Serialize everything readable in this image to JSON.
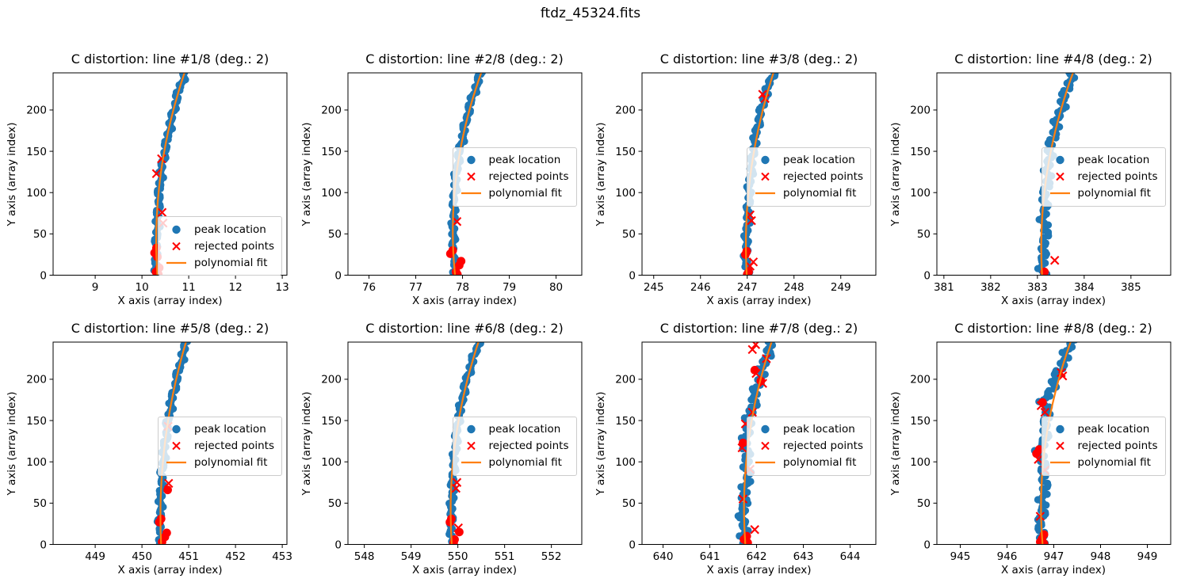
{
  "figure": {
    "suptitle": "ftdz_45324.fits",
    "background": "#ffffff"
  },
  "colors": {
    "peak": "#1f77b4",
    "rejected": "#ff0000",
    "fit": "#ff7f0e",
    "frame": "#000000"
  },
  "legend": {
    "items": [
      {
        "label": "peak location",
        "marker": "dot",
        "color": "#1f77b4"
      },
      {
        "label": "rejected points",
        "marker": "x",
        "color": "#ff0000"
      },
      {
        "label": "polynomial fit",
        "marker": "line",
        "color": "#ff7f0e"
      }
    ]
  },
  "axis": {
    "xlabel": "X axis (array index)",
    "ylabel": "Y axis (array index)",
    "y_ticks": [
      0,
      50,
      100,
      150,
      200
    ],
    "ylim": [
      0,
      245
    ],
    "grid": false
  },
  "chart_data": [
    {
      "type": "scatter",
      "title": "C distortion: line #1/8 (deg.: 2)",
      "xlim": [
        8.1,
        13.1
      ],
      "x_ticks": [
        9,
        10,
        11,
        12,
        13
      ],
      "legend_loc": "lower right",
      "wiggle": 0.032,
      "seed": 1,
      "series": {
        "peak_trace": [
          [
            0,
            10.31
          ],
          [
            25,
            10.3
          ],
          [
            50,
            10.32
          ],
          [
            75,
            10.34
          ],
          [
            100,
            10.37
          ],
          [
            125,
            10.41
          ],
          [
            150,
            10.49
          ],
          [
            175,
            10.58
          ],
          [
            200,
            10.68
          ],
          [
            222,
            10.78
          ],
          [
            245,
            10.92
          ]
        ],
        "fit": [
          [
            0,
            10.33
          ],
          [
            122,
            10.4
          ],
          [
            245,
            10.91
          ]
        ],
        "rejected": [
          [
            10.42,
            141,
            "x"
          ],
          [
            10.31,
            123,
            "x"
          ],
          [
            10.43,
            76,
            "x"
          ],
          [
            10.45,
            63,
            "x"
          ],
          [
            10.31,
            33,
            "dot"
          ],
          [
            10.27,
            27,
            "dot"
          ],
          [
            10.33,
            22,
            "dot"
          ],
          [
            10.37,
            9,
            "dot"
          ],
          [
            10.3,
            4,
            "dot"
          ],
          [
            10.35,
            1,
            "dot"
          ]
        ]
      }
    },
    {
      "type": "scatter",
      "title": "C distortion: line #2/8 (deg.: 2)",
      "xlim": [
        75.55,
        80.55
      ],
      "x_ticks": [
        76,
        77,
        78,
        79,
        80
      ],
      "legend_loc": "center right",
      "wiggle": 0.032,
      "seed": 2,
      "series": {
        "peak_trace": [
          [
            0,
            77.85
          ],
          [
            25,
            77.8
          ],
          [
            50,
            77.8
          ],
          [
            75,
            77.81
          ],
          [
            100,
            77.83
          ],
          [
            125,
            77.87
          ],
          [
            150,
            77.94
          ],
          [
            175,
            78.03
          ],
          [
            200,
            78.13
          ],
          [
            222,
            78.25
          ],
          [
            245,
            78.4
          ]
        ],
        "fit": [
          [
            0,
            77.84
          ],
          [
            122,
            77.87
          ],
          [
            245,
            78.4
          ]
        ],
        "rejected": [
          [
            77.88,
            65,
            "x"
          ],
          [
            77.79,
            30,
            "dot"
          ],
          [
            77.74,
            26,
            "dot"
          ],
          [
            77.97,
            17,
            "dot"
          ],
          [
            77.93,
            12,
            "dot"
          ],
          [
            77.86,
            4,
            "dot"
          ],
          [
            77.89,
            1,
            "dot"
          ]
        ]
      }
    },
    {
      "type": "scatter",
      "title": "C distortion: line #3/8 (deg.: 2)",
      "xlim": [
        244.75,
        249.75
      ],
      "x_ticks": [
        245,
        246,
        247,
        248,
        249
      ],
      "legend_loc": "center right",
      "wiggle": 0.034,
      "seed": 3,
      "series": {
        "peak_trace": [
          [
            0,
            247.0
          ],
          [
            25,
            246.97
          ],
          [
            50,
            246.99
          ],
          [
            75,
            247.02
          ],
          [
            100,
            247.04
          ],
          [
            125,
            247.08
          ],
          [
            150,
            247.13
          ],
          [
            175,
            247.2
          ],
          [
            200,
            247.3
          ],
          [
            222,
            247.41
          ],
          [
            245,
            247.56
          ]
        ],
        "fit": [
          [
            0,
            246.99
          ],
          [
            122,
            247.07
          ],
          [
            245,
            247.56
          ]
        ],
        "rejected": [
          [
            247.33,
            219,
            "x"
          ],
          [
            247.38,
            214,
            "x"
          ],
          [
            247.06,
            73,
            "x"
          ],
          [
            247.09,
            66,
            "x"
          ],
          [
            246.99,
            29,
            "dot"
          ],
          [
            246.96,
            25,
            "dot"
          ],
          [
            247.13,
            16,
            "x"
          ],
          [
            247.06,
            11,
            "x"
          ],
          [
            247.03,
            4,
            "dot"
          ],
          [
            247.0,
            1,
            "dot"
          ]
        ]
      }
    },
    {
      "type": "scatter",
      "title": "C distortion: line #4/8 (deg.: 2)",
      "xlim": [
        380.85,
        385.85
      ],
      "x_ticks": [
        381,
        382,
        383,
        384,
        385
      ],
      "legend_loc": "center right",
      "wiggle": 0.055,
      "seed": 4,
      "series": {
        "peak_trace": [
          [
            0,
            383.13
          ],
          [
            20,
            383.1
          ],
          [
            45,
            383.18
          ],
          [
            70,
            383.14
          ],
          [
            95,
            383.16
          ],
          [
            115,
            383.22
          ],
          [
            140,
            383.24
          ],
          [
            160,
            383.3
          ],
          [
            185,
            383.42
          ],
          [
            210,
            383.55
          ],
          [
            230,
            383.65
          ],
          [
            245,
            383.76
          ]
        ],
        "fit": [
          [
            0,
            383.1
          ],
          [
            122,
            383.2
          ],
          [
            245,
            383.76
          ]
        ],
        "rejected": [
          [
            383.37,
            18,
            "x"
          ],
          [
            383.15,
            4,
            "dot"
          ]
        ]
      }
    },
    {
      "type": "scatter",
      "title": "C distortion: line #5/8 (deg.: 2)",
      "xlim": [
        448.1,
        453.1
      ],
      "x_ticks": [
        449,
        450,
        451,
        452,
        453
      ],
      "legend_loc": "center right",
      "wiggle": 0.034,
      "seed": 5,
      "series": {
        "peak_trace": [
          [
            0,
            450.4
          ],
          [
            25,
            450.38
          ],
          [
            50,
            450.4
          ],
          [
            75,
            450.42
          ],
          [
            100,
            450.45
          ],
          [
            125,
            450.5
          ],
          [
            150,
            450.56
          ],
          [
            175,
            450.64
          ],
          [
            200,
            450.74
          ],
          [
            222,
            450.84
          ],
          [
            245,
            450.95
          ]
        ],
        "fit": [
          [
            0,
            450.41
          ],
          [
            122,
            450.49
          ],
          [
            245,
            450.94
          ]
        ],
        "rejected": [
          [
            450.56,
            143,
            "x"
          ],
          [
            450.57,
            74,
            "x"
          ],
          [
            450.55,
            66,
            "dot"
          ],
          [
            450.41,
            31,
            "dot"
          ],
          [
            450.37,
            27,
            "dot"
          ],
          [
            450.53,
            14,
            "dot"
          ],
          [
            450.49,
            9,
            "dot"
          ],
          [
            450.43,
            3,
            "dot"
          ]
        ]
      }
    },
    {
      "type": "scatter",
      "title": "C distortion: line #6/8 (deg.: 2)",
      "xlim": [
        547.65,
        552.65
      ],
      "x_ticks": [
        548,
        549,
        550,
        551,
        552
      ],
      "legend_loc": "center right",
      "wiggle": 0.032,
      "seed": 6,
      "series": {
        "peak_trace": [
          [
            0,
            549.88
          ],
          [
            25,
            549.85
          ],
          [
            50,
            549.87
          ],
          [
            75,
            549.89
          ],
          [
            100,
            549.92
          ],
          [
            125,
            549.96
          ],
          [
            150,
            550.01
          ],
          [
            175,
            550.09
          ],
          [
            200,
            550.19
          ],
          [
            222,
            550.31
          ],
          [
            245,
            550.45
          ]
        ],
        "fit": [
          [
            0,
            549.87
          ],
          [
            122,
            549.94
          ],
          [
            245,
            550.44
          ]
        ],
        "rejected": [
          [
            549.98,
            75,
            "x"
          ],
          [
            549.96,
            68,
            "x"
          ],
          [
            549.86,
            31,
            "dot"
          ],
          [
            549.83,
            27,
            "dot"
          ],
          [
            550.01,
            20,
            "x"
          ],
          [
            550.03,
            15,
            "dot"
          ],
          [
            549.93,
            6,
            "dot"
          ],
          [
            549.91,
            2,
            "dot"
          ]
        ]
      }
    },
    {
      "type": "scatter",
      "title": "C distortion: line #7/8 (deg.: 2)",
      "xlim": [
        639.55,
        644.55
      ],
      "x_ticks": [
        640,
        641,
        642,
        643,
        644
      ],
      "legend_loc": "center right",
      "wiggle": 0.06,
      "seed": 7,
      "series": {
        "peak_trace": [
          [
            0,
            641.75
          ],
          [
            30,
            641.7
          ],
          [
            55,
            641.73
          ],
          [
            90,
            641.82
          ],
          [
            120,
            641.75
          ],
          [
            145,
            641.81
          ],
          [
            160,
            641.88
          ],
          [
            180,
            641.96
          ],
          [
            200,
            642.06
          ],
          [
            225,
            642.2
          ],
          [
            245,
            642.32
          ]
        ],
        "fit": [
          [
            0,
            641.76
          ],
          [
            122,
            641.82
          ],
          [
            245,
            642.32
          ]
        ],
        "rejected": [
          [
            641.98,
            242,
            "x"
          ],
          [
            641.91,
            236,
            "x"
          ],
          [
            642.21,
            225,
            "x"
          ],
          [
            641.96,
            211,
            "dot"
          ],
          [
            641.99,
            207,
            "x"
          ],
          [
            642.09,
            198,
            "dot"
          ],
          [
            642.13,
            195,
            "x"
          ],
          [
            641.91,
            160,
            "x"
          ],
          [
            641.76,
            146,
            "x"
          ],
          [
            641.71,
            123,
            "dot"
          ],
          [
            641.69,
            117,
            "x"
          ],
          [
            641.86,
            91,
            "x"
          ],
          [
            641.71,
            55,
            "x"
          ],
          [
            641.96,
            18,
            "x"
          ],
          [
            641.79,
            10,
            "dot"
          ],
          [
            641.73,
            6,
            "dot"
          ],
          [
            641.81,
            2,
            "dot"
          ]
        ]
      }
    },
    {
      "type": "scatter",
      "title": "C distortion: line #8/8 (deg.: 2)",
      "xlim": [
        944.5,
        949.5
      ],
      "x_ticks": [
        945,
        946,
        947,
        948,
        949
      ],
      "legend_loc": "center right",
      "wiggle": 0.06,
      "seed": 8,
      "series": {
        "peak_trace": [
          [
            0,
            946.74
          ],
          [
            25,
            946.72
          ],
          [
            55,
            946.78
          ],
          [
            85,
            946.81
          ],
          [
            112,
            946.7
          ],
          [
            135,
            946.83
          ],
          [
            160,
            946.85
          ],
          [
            172,
            946.79
          ],
          [
            195,
            947.0
          ],
          [
            220,
            947.18
          ],
          [
            245,
            947.4
          ]
        ],
        "fit": [
          [
            0,
            946.76
          ],
          [
            122,
            946.82
          ],
          [
            245,
            947.36
          ]
        ],
        "rejected": [
          [
            947.16,
            208,
            "x"
          ],
          [
            947.19,
            204,
            "x"
          ],
          [
            946.76,
            172,
            "dot"
          ],
          [
            946.73,
            168,
            "x"
          ],
          [
            946.81,
            160,
            "x"
          ],
          [
            946.69,
            115,
            "dot"
          ],
          [
            946.63,
            110,
            "dot"
          ],
          [
            946.67,
            103,
            "x"
          ],
          [
            946.81,
            90,
            "x"
          ],
          [
            946.71,
            34,
            "x"
          ],
          [
            946.79,
            12,
            "dot"
          ],
          [
            946.75,
            7,
            "dot"
          ],
          [
            946.71,
            3,
            "dot"
          ],
          [
            946.79,
            1,
            "dot"
          ]
        ]
      }
    }
  ]
}
